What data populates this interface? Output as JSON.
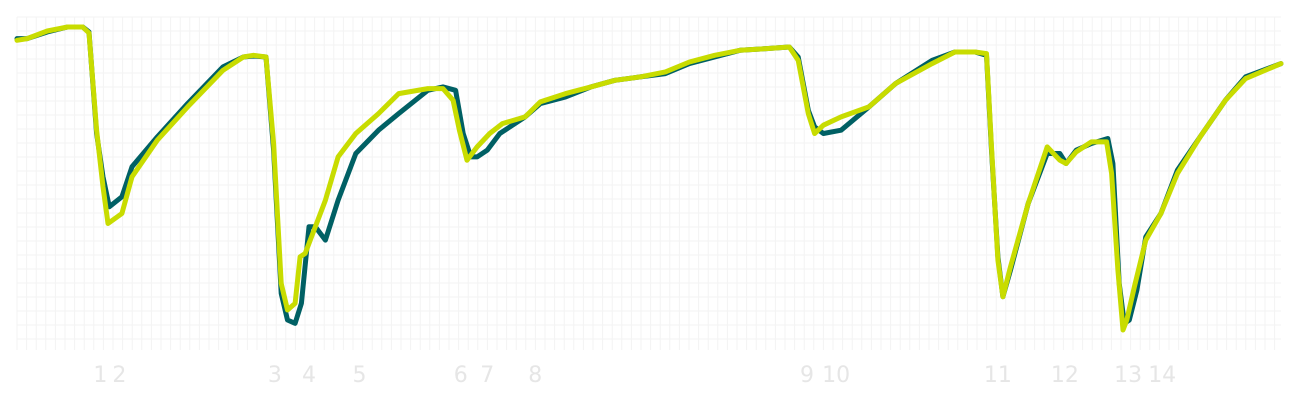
{
  "chart_data": {
    "type": "line",
    "title": "",
    "xlabel": "",
    "ylabel": "",
    "xlim": [
      0,
      100
    ],
    "ylim": [
      0,
      100
    ],
    "grid": true,
    "legend": "none",
    "x_ticks": [
      {
        "value": 6.6,
        "label": "1"
      },
      {
        "value": 8.1,
        "label": "2"
      },
      {
        "value": 20.4,
        "label": "3"
      },
      {
        "value": 23.1,
        "label": "4"
      },
      {
        "value": 27.1,
        "label": "5"
      },
      {
        "value": 35.1,
        "label": "6"
      },
      {
        "value": 37.2,
        "label": "7"
      },
      {
        "value": 41.0,
        "label": "8"
      },
      {
        "value": 62.5,
        "label": "9"
      },
      {
        "value": 64.8,
        "label": "10"
      },
      {
        "value": 77.6,
        "label": "11"
      },
      {
        "value": 82.9,
        "label": "12"
      },
      {
        "value": 87.9,
        "label": "13"
      },
      {
        "value": 90.6,
        "label": "14"
      }
    ],
    "series": [
      {
        "color": "#006064",
        "x": [
          0,
          0.8,
          2.4,
          4.0,
          5.2,
          5.7,
          6.3,
          6.8,
          7.3,
          8.3,
          9.1,
          11.1,
          13.5,
          16.3,
          17.9,
          18.7,
          19.7,
          20.3,
          20.9,
          21.4,
          22.0,
          22.5,
          23.1,
          23.6,
          24.4,
          25.4,
          26.8,
          28.6,
          30.2,
          32.5,
          33.7,
          34.7,
          35.3,
          35.9,
          36.4,
          37.2,
          38.2,
          40.2,
          41.4,
          43.4,
          45.4,
          47.3,
          49.3,
          51.3,
          53.2,
          55.2,
          57.2,
          59.3,
          61.1,
          61.8,
          62.6,
          63.1,
          63.8,
          65.2,
          67.4,
          69.5,
          72.4,
          74.2,
          75.8,
          76.7,
          77.1,
          77.6,
          78.0,
          78.6,
          80.0,
          81.5,
          82.5,
          83.0,
          83.8,
          85.0,
          86.3,
          86.7,
          87.2,
          87.6,
          88.0,
          88.6,
          89.3,
          90.5,
          91.8,
          93.6,
          95.6,
          97.2,
          100
        ],
        "values": [
          93.5,
          93.5,
          95.5,
          97.0,
          97.0,
          95.5,
          65,
          52,
          43,
          46,
          55,
          64,
          74,
          85,
          88,
          88.3,
          88.0,
          60,
          17,
          9,
          8,
          14,
          37,
          37,
          33,
          45,
          59,
          66,
          71,
          78,
          79,
          78,
          65,
          58,
          58,
          60,
          65,
          70,
          74,
          76,
          79,
          81,
          82,
          83,
          86,
          88,
          90,
          90.5,
          91,
          88,
          72,
          67,
          65,
          66,
          73,
          80,
          87,
          89.5,
          89.5,
          88.5,
          60,
          28,
          16,
          24,
          44,
          59,
          59,
          56,
          60,
          62,
          63.5,
          56,
          20,
          8,
          9,
          18,
          34,
          41,
          54,
          64,
          75,
          82,
          86
        ]
      },
      {
        "color": "#c8dc00",
        "x": [
          0,
          0.8,
          2.4,
          4.0,
          5.2,
          5.7,
          6.3,
          6.8,
          7.2,
          8.3,
          9.1,
          11.1,
          13.5,
          16.3,
          17.9,
          18.7,
          19.7,
          20.3,
          20.9,
          21.4,
          22.0,
          22.4,
          22.8,
          23.4,
          24.4,
          25.4,
          26.8,
          28.6,
          30.2,
          32.5,
          33.7,
          34.5,
          35.0,
          35.6,
          36.4,
          37.4,
          38.4,
          40.2,
          41.4,
          43.4,
          45.4,
          47.3,
          49.3,
          51.3,
          53.2,
          55.2,
          57.2,
          59.3,
          61.1,
          61.8,
          62.6,
          63.1,
          63.8,
          65.2,
          67.4,
          69.5,
          72.4,
          74.2,
          75.8,
          76.7,
          77.1,
          77.6,
          78.0,
          78.6,
          80.0,
          81.5,
          82.5,
          83.0,
          83.8,
          85.0,
          86.2,
          86.6,
          87.1,
          87.5,
          87.8,
          88.4,
          89.3,
          90.5,
          91.8,
          93.6,
          95.6,
          97.2,
          100
        ],
        "values": [
          93.0,
          93.5,
          95.8,
          97.0,
          97.0,
          95.2,
          66,
          49,
          38,
          41,
          52,
          63,
          73,
          84,
          88,
          88.5,
          88.0,
          62,
          20,
          12,
          14,
          28,
          29,
          35,
          45,
          58,
          65,
          71,
          77,
          78.5,
          78.5,
          75,
          66,
          57,
          61,
          65,
          68,
          70,
          74.5,
          77,
          79,
          81,
          82,
          83.5,
          86.5,
          88.5,
          90,
          90.5,
          91,
          87,
          71,
          65,
          67.5,
          70,
          73,
          80,
          86,
          89.5,
          89.5,
          89,
          61,
          27,
          16,
          25,
          44,
          61,
          57,
          56,
          59.5,
          62.5,
          62.5,
          53,
          24,
          6,
          9,
          19,
          33,
          41,
          53,
          64,
          75,
          81.5,
          86
        ]
      }
    ]
  }
}
